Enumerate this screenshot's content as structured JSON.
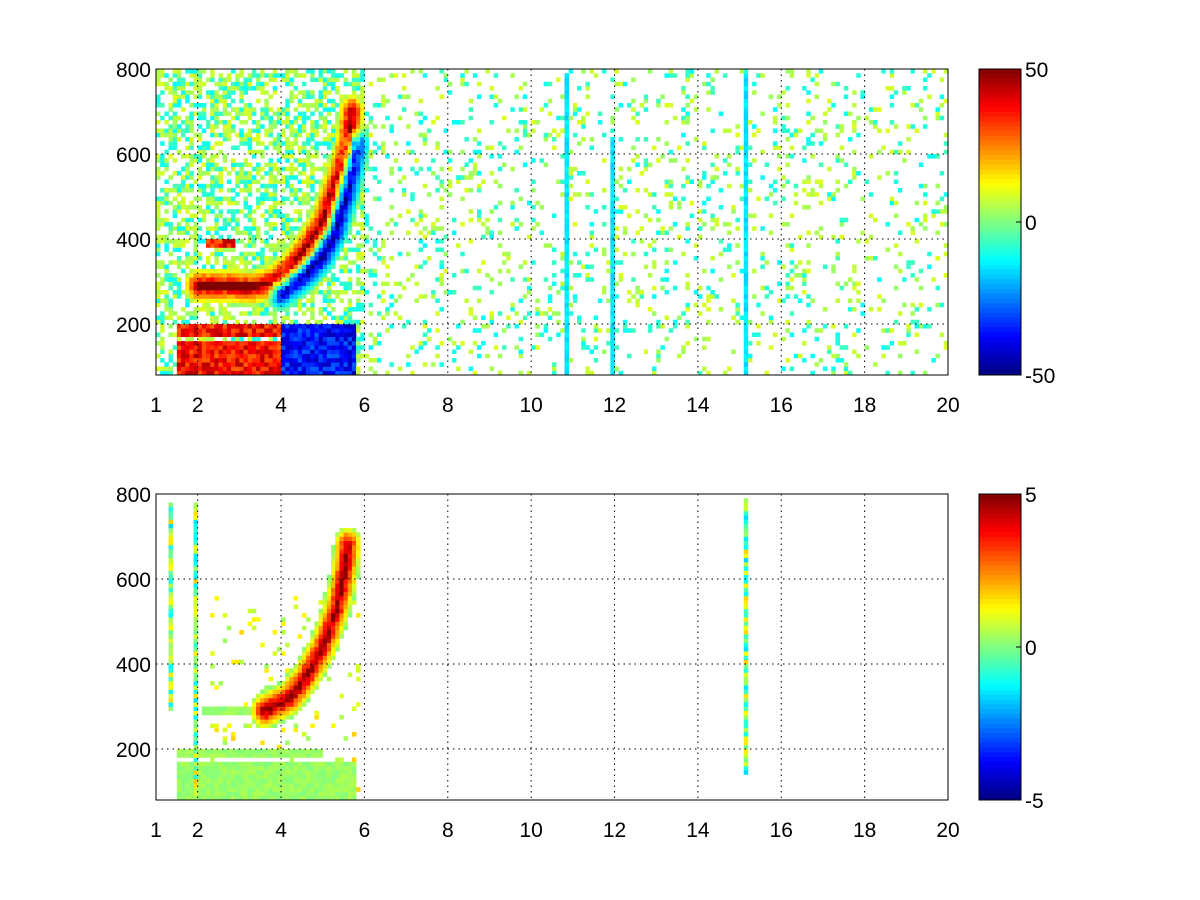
{
  "chart_data": [
    {
      "type": "heatmap",
      "title": "",
      "xlabel": "",
      "ylabel": "",
      "xlim": [
        1,
        20
      ],
      "ylim": [
        80,
        800
      ],
      "x_ticks": [
        1,
        2,
        4,
        6,
        8,
        10,
        12,
        14,
        16,
        18,
        20
      ],
      "y_ticks": [
        200,
        400,
        600,
        800
      ],
      "grid": true,
      "colormap": "jet",
      "color_range": [
        -50,
        50
      ],
      "colorbar_ticks": [
        50,
        0,
        -50
      ],
      "features": [
        {
          "kind": "ridge",
          "sign": "positive",
          "points": [
            [
              2.0,
              290
            ],
            [
              2.8,
              290
            ],
            [
              3.3,
              285
            ],
            [
              3.8,
              300
            ],
            [
              4.2,
              330
            ],
            [
              4.6,
              380
            ],
            [
              5.0,
              440
            ],
            [
              5.2,
              500
            ],
            [
              5.4,
              560
            ],
            [
              5.6,
              620
            ],
            [
              5.7,
              700
            ]
          ]
        },
        {
          "kind": "ridge",
          "sign": "negative",
          "points": [
            [
              4.0,
              275
            ],
            [
              4.6,
              320
            ],
            [
              5.0,
              360
            ],
            [
              5.3,
              420
            ],
            [
              5.6,
              520
            ],
            [
              5.8,
              620
            ]
          ]
        },
        {
          "kind": "band",
          "sign": "positive",
          "x": [
            1.5,
            4.0
          ],
          "y": [
            80,
            160
          ]
        },
        {
          "kind": "band",
          "sign": "negative",
          "x": [
            4.0,
            5.8
          ],
          "y": [
            80,
            170
          ]
        },
        {
          "kind": "band",
          "sign": "positive",
          "x": [
            1.5,
            4.0
          ],
          "y": [
            175,
            200
          ]
        },
        {
          "kind": "band",
          "sign": "negative",
          "x": [
            4.0,
            5.8
          ],
          "y": [
            175,
            200
          ]
        },
        {
          "kind": "band",
          "sign": "positive",
          "x": [
            2.0,
            3.4
          ],
          "y": [
            278,
            298
          ]
        },
        {
          "kind": "band",
          "sign": "positive",
          "x": [
            2.2,
            2.9
          ],
          "y": [
            380,
            400
          ]
        },
        {
          "kind": "stripe",
          "sign": "negative",
          "x": 15.15,
          "y": [
            80,
            790
          ]
        },
        {
          "kind": "stripe",
          "sign": "negative",
          "x": 11.95,
          "y": [
            80,
            640
          ]
        },
        {
          "kind": "stripe",
          "sign": "negative",
          "x": 10.85,
          "y": [
            80,
            790
          ]
        }
      ]
    },
    {
      "type": "heatmap",
      "title": "",
      "xlabel": "",
      "ylabel": "",
      "xlim": [
        1,
        20
      ],
      "ylim": [
        80,
        800
      ],
      "x_ticks": [
        1,
        2,
        4,
        6,
        8,
        10,
        12,
        14,
        16,
        18,
        20
      ],
      "y_ticks": [
        200,
        400,
        600,
        800
      ],
      "grid": true,
      "colormap": "jet",
      "color_range": [
        -5,
        5
      ],
      "colorbar_ticks": [
        5,
        0,
        -5
      ],
      "features": [
        {
          "kind": "ridge",
          "sign": "positive",
          "points": [
            [
              3.6,
              290
            ],
            [
              4.2,
              320
            ],
            [
              4.6,
              370
            ],
            [
              5.0,
              440
            ],
            [
              5.3,
              520
            ],
            [
              5.5,
              600
            ],
            [
              5.6,
              680
            ]
          ]
        },
        {
          "kind": "band",
          "sign": "neutral",
          "x": [
            1.5,
            5.8
          ],
          "y": [
            80,
            170
          ]
        },
        {
          "kind": "band",
          "sign": "neutral",
          "x": [
            1.5,
            5.0
          ],
          "y": [
            178,
            195
          ]
        },
        {
          "kind": "band",
          "sign": "neutral",
          "x": [
            2.1,
            3.8
          ],
          "y": [
            280,
            295
          ]
        },
        {
          "kind": "stripe",
          "sign": "mixed",
          "x": 15.15,
          "y": [
            140,
            790
          ]
        },
        {
          "kind": "stripe",
          "sign": "mixed",
          "x": 1.35,
          "y": [
            290,
            780
          ]
        },
        {
          "kind": "stripe",
          "sign": "mixed",
          "x": 1.95,
          "y": [
            80,
            780
          ]
        }
      ]
    }
  ]
}
